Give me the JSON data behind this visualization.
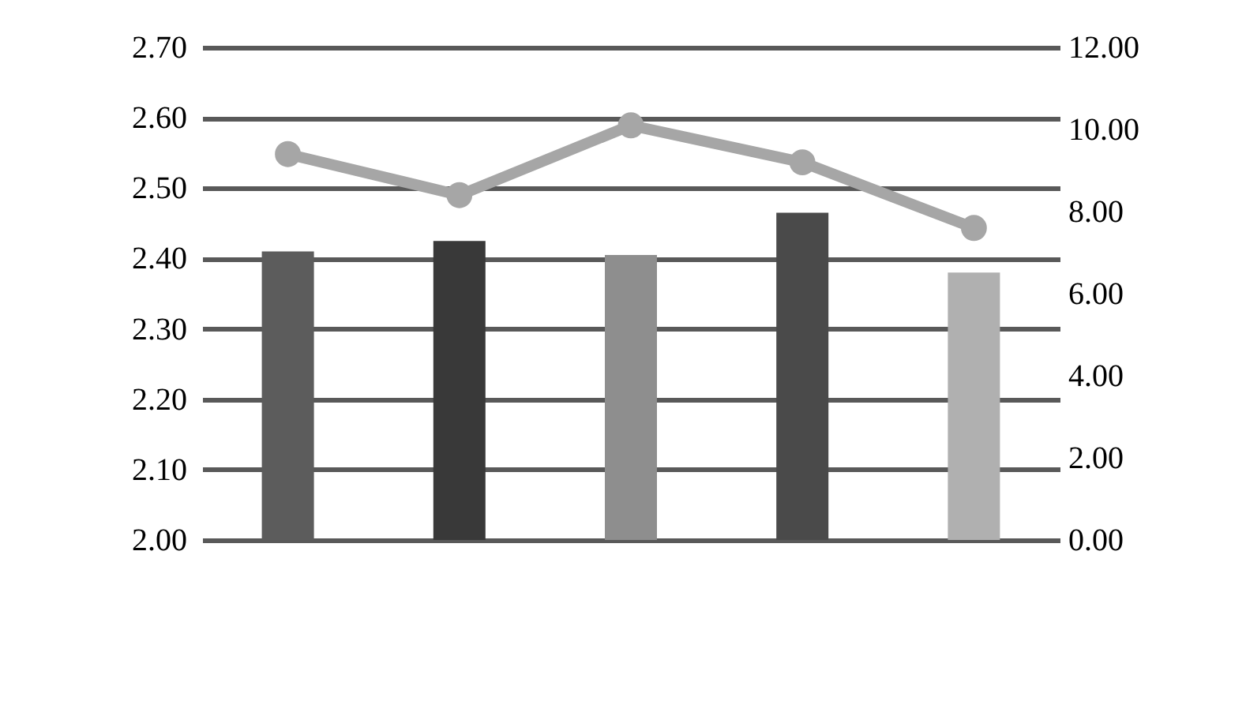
{
  "chart_data": {
    "type": "bar",
    "categories": [
      null,
      null,
      null,
      null,
      null
    ],
    "series": [
      {
        "colors": [
          "#5c5c5c",
          "#393939",
          "#8e8e8e",
          "#4a4a4a",
          "#b0b0b0"
        ],
        "values": [
          2.41,
          2.425,
          2.405,
          2.465,
          2.38
        ]
      },
      {
        "type": "line",
        "axis": "y2",
        "color": "#a6a6a6",
        "marker": "circle",
        "values": [
          9.4,
          8.4,
          10.1,
          9.2,
          7.6
        ]
      }
    ],
    "ylim": [
      2.0,
      2.7
    ],
    "yticks": [
      {
        "value": 2.0,
        "label": "2.00"
      },
      {
        "value": 2.1,
        "label": "2.10"
      },
      {
        "value": 2.2,
        "label": "2.20"
      },
      {
        "value": 2.3,
        "label": "2.30"
      },
      {
        "value": 2.4,
        "label": "2.40"
      },
      {
        "value": 2.5,
        "label": "2.50"
      },
      {
        "value": 2.6,
        "label": "2.60"
      },
      {
        "value": 2.7,
        "label": "2.70"
      }
    ],
    "y2lim": [
      0,
      12
    ],
    "y2ticks": [
      {
        "value": 0,
        "label": "0.00"
      },
      {
        "value": 2,
        "label": "2.00"
      },
      {
        "value": 4,
        "label": "4.00"
      },
      {
        "value": 6,
        "label": "6.00"
      },
      {
        "value": 8,
        "label": "8.00"
      },
      {
        "value": 10,
        "label": "10.00"
      },
      {
        "value": 12,
        "label": "12.00"
      }
    ],
    "grid": "y"
  }
}
